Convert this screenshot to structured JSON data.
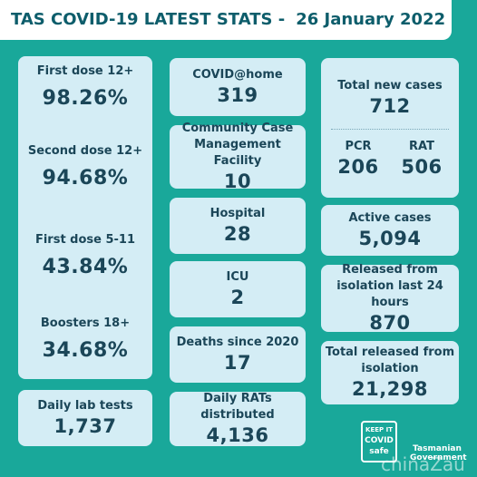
{
  "header": {
    "title": "TAS COVID-19 LATEST STATS -",
    "date": "26 January 2022"
  },
  "vaccination": [
    {
      "label": "First dose 12+",
      "value": "98.26%"
    },
    {
      "label": "Second dose 12+",
      "value": "94.68%"
    },
    {
      "label": "First dose 5-11",
      "value": "43.84%"
    },
    {
      "label": "Boosters 18+",
      "value": "34.68%"
    }
  ],
  "lab_tests": {
    "label": "Daily lab tests",
    "value": "1,737"
  },
  "middle": [
    {
      "label": "COVID@home",
      "value": "319"
    },
    {
      "label": "Community Case Management Facility",
      "value": "10"
    },
    {
      "label": "Hospital",
      "value": "28"
    },
    {
      "label": "ICU",
      "value": "2"
    },
    {
      "label": "Deaths since 2020",
      "value": "17"
    },
    {
      "label": "Daily RATs distributed",
      "value": "4,136"
    }
  ],
  "total_new_cases": {
    "label": "Total new cases",
    "value": "712",
    "breakdown": [
      {
        "label": "PCR",
        "value": "206"
      },
      {
        "label": "RAT",
        "value": "506"
      }
    ]
  },
  "right": [
    {
      "label": "Active cases",
      "value": "5,094"
    },
    {
      "label": "Released from isolation last 24 hours",
      "value": "870"
    },
    {
      "label": "Total released from isolation",
      "value": "21,298"
    }
  ],
  "logos": {
    "keep_it": "KEEP IT",
    "covid_safe": "COVID safe",
    "government": "Tasmanian Government"
  },
  "watermark": "chinaZau"
}
